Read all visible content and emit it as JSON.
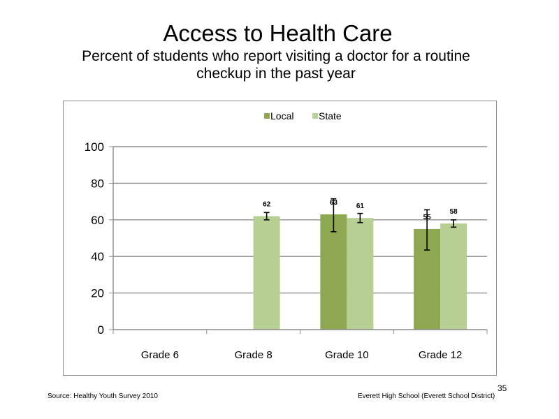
{
  "slide": {
    "title": "Access to Health Care",
    "subtitle": "Percent of students who report visiting a doctor for a routine checkup in the past year",
    "source": "Source: Healthy Youth Survey 2010",
    "school": "Everett High School (Everett School District)",
    "page_number": "35"
  },
  "chart_data": {
    "type": "bar",
    "categories": [
      "Grade 6",
      "Grade 8",
      "Grade 10",
      "Grade 12"
    ],
    "series": [
      {
        "name": "Local",
        "color": "#8da851",
        "values": [
          null,
          null,
          63,
          55
        ],
        "labels": [
          "",
          "",
          "63",
          "55"
        ],
        "error": [
          null,
          null,
          [
            53.5,
            71.5
          ],
          [
            43.5,
            65.5
          ]
        ]
      },
      {
        "name": "State",
        "color": "#b8cf93",
        "values": [
          null,
          62,
          61,
          58
        ],
        "labels": [
          "",
          "62",
          "61",
          "58"
        ],
        "error": [
          null,
          [
            60,
            64
          ],
          [
            58.5,
            63.5
          ],
          [
            56,
            60
          ]
        ]
      }
    ],
    "ylim": [
      0,
      100
    ],
    "yticks": [
      0,
      20,
      40,
      60,
      80,
      100
    ],
    "grid": true,
    "legend_position": "top"
  }
}
